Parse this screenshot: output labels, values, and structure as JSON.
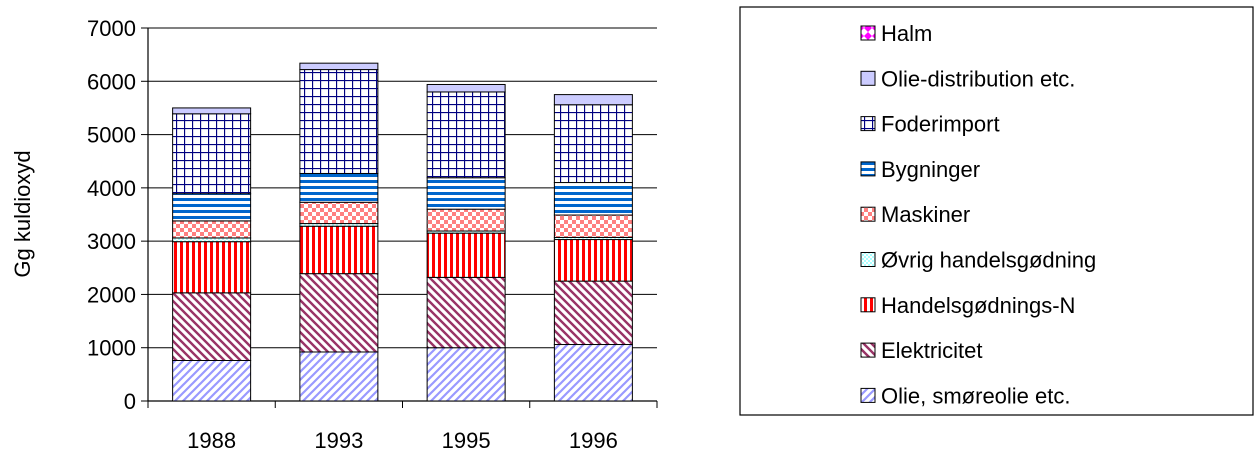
{
  "chart_data": {
    "type": "bar",
    "stacked": true,
    "title": "",
    "xlabel": "",
    "ylabel": "Gg kuldioxyd",
    "ylim": [
      0,
      7000
    ],
    "yticks": [
      0,
      1000,
      2000,
      3000,
      4000,
      5000,
      6000,
      7000
    ],
    "categories": [
      "1988",
      "1993",
      "1995",
      "1996"
    ],
    "grid": true,
    "legend_position": "right",
    "series": [
      {
        "name": "Olie, smøreolie etc.",
        "values": [
          760,
          920,
          1000,
          1060
        ],
        "color": "#9999ff",
        "pattern": "diag-up"
      },
      {
        "name": "Elektricitet",
        "values": [
          1270,
          1470,
          1320,
          1190
        ],
        "color": "#993366",
        "pattern": "diag-down"
      },
      {
        "name": "Handelsgødnings-N",
        "values": [
          960,
          890,
          830,
          780
        ],
        "color": "#ff0000",
        "pattern": "vertical"
      },
      {
        "name": "Øvrig handelsgødning",
        "values": [
          70,
          50,
          40,
          40
        ],
        "color": "#ccffff",
        "pattern": "dots"
      },
      {
        "name": "Maskiner",
        "values": [
          320,
          400,
          410,
          420
        ],
        "color": "#ff8080",
        "pattern": "checker"
      },
      {
        "name": "Bygninger",
        "values": [
          510,
          540,
          590,
          610
        ],
        "color": "#0066cc",
        "pattern": "horizontal"
      },
      {
        "name": "Foderimport",
        "values": [
          1500,
          1950,
          1610,
          1460
        ],
        "color": "#000080",
        "pattern": "grid"
      },
      {
        "name": "Olie-distribution etc.",
        "values": [
          110,
          120,
          140,
          190
        ],
        "color": "#ccccff",
        "pattern": "solid"
      },
      {
        "name": "Halm",
        "values": [
          0,
          0,
          0,
          0
        ],
        "color": "#ff00ff",
        "pattern": "diamond"
      }
    ]
  }
}
